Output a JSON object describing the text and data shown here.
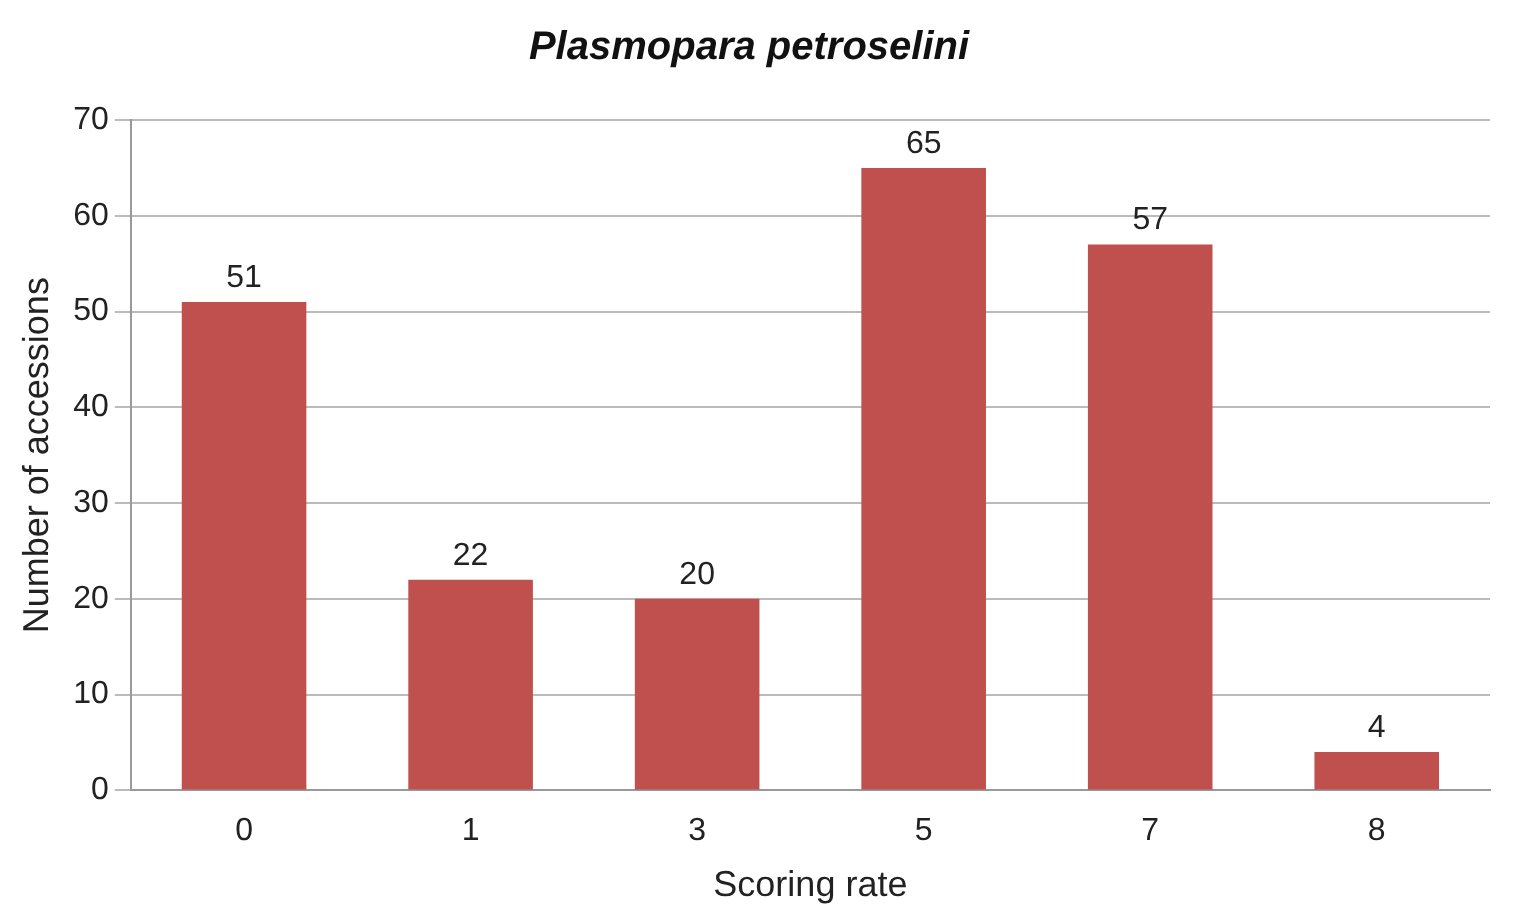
{
  "chart_data": {
    "type": "bar",
    "title": "Plasmopara petroselini",
    "xlabel": "Scoring rate",
    "ylabel": "Number of accessions",
    "categories": [
      "0",
      "1",
      "3",
      "5",
      "7",
      "8"
    ],
    "values": [
      51,
      22,
      20,
      65,
      57,
      4
    ],
    "color": "#c0504d",
    "ylim": [
      0,
      70
    ],
    "yticks": [
      0,
      10,
      20,
      30,
      40,
      50,
      60,
      70
    ],
    "grid": "y",
    "data_labels": true,
    "legend": false
  }
}
